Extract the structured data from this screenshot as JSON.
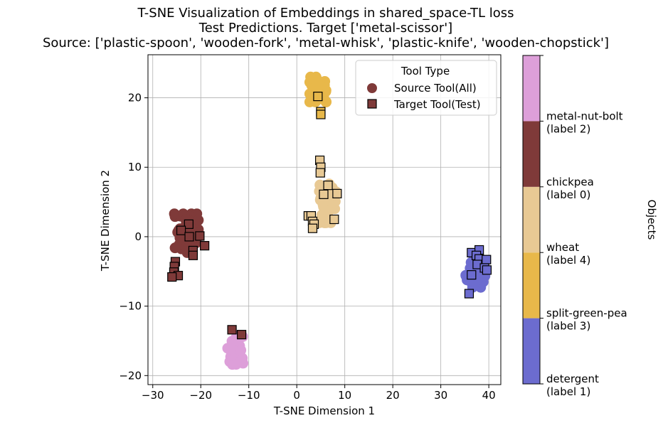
{
  "chart_data": {
    "type": "scatter",
    "title_lines": [
      "T-SNE Visualization of Embeddings in shared_space-TL loss",
      "Test Predictions. Target ['metal-scissor']",
      "Source: ['plastic-spoon', 'wooden-fork', 'metal-whisk', 'plastic-knife', 'wooden-chopstick']"
    ],
    "xlabel": "T-SNE Dimension 1",
    "ylabel": "T-SNE Dimension 2",
    "xlim": [
      -31,
      42.5
    ],
    "ylim": [
      -21.3,
      26.2
    ],
    "xticks": [
      -30,
      -20,
      -10,
      0,
      10,
      20,
      30,
      40
    ],
    "yticks": [
      -20,
      -10,
      0,
      10,
      20
    ],
    "grid": true,
    "legend": {
      "title": "Tool Type",
      "placement": "top-right",
      "entries": [
        "Source Tool(All)",
        "Target Tool(Test)"
      ]
    },
    "colorbar": {
      "title": "Objects",
      "categories": [
        {
          "name": "detergent",
          "label": "(label 1)",
          "color": "#6c6ccf"
        },
        {
          "name": "split-green-pea",
          "label": "(label 3)",
          "color": "#e8b84a"
        },
        {
          "name": "wheat",
          "label": "(label 4)",
          "color": "#e8c994"
        },
        {
          "name": "chickpea",
          "label": "(label 0)",
          "color": "#7f3a39"
        },
        {
          "name": "metal-nut-bolt",
          "label": "(label 2)",
          "color": "#dd9fd9"
        }
      ]
    },
    "series": [
      {
        "name": "Source Tool(All)",
        "marker": "circle",
        "clusters": [
          {
            "category": "chickpea",
            "center": [
              -23,
              0.5
            ],
            "spread": [
              2.5,
              2.8
            ],
            "count": 90
          },
          {
            "category": "metal-nut-bolt",
            "center": [
              -12.8,
              -16.5
            ],
            "spread": [
              1.6,
              2.3
            ],
            "count": 70
          },
          {
            "category": "split-green-pea",
            "center": [
              4.5,
              21.2
            ],
            "spread": [
              1.8,
              1.8
            ],
            "count": 60
          },
          {
            "category": "wheat",
            "center": [
              6.5,
              4.8
            ],
            "spread": [
              1.8,
              2.8
            ],
            "count": 60
          },
          {
            "category": "detergent",
            "center": [
              37.2,
              -5.5
            ],
            "spread": [
              2.0,
              1.8
            ],
            "count": 60
          }
        ]
      },
      {
        "name": "Target Tool(Test)",
        "marker": "square",
        "points": [
          {
            "x": 4.4,
            "y": 20.2,
            "category": "split-green-pea"
          },
          {
            "x": 5.0,
            "y": 18.0,
            "category": "split-green-pea"
          },
          {
            "x": 5.0,
            "y": 17.6,
            "category": "split-green-pea"
          },
          {
            "x": 4.8,
            "y": 11.0,
            "category": "wheat"
          },
          {
            "x": 5.0,
            "y": 10.0,
            "category": "wheat"
          },
          {
            "x": 4.9,
            "y": 9.2,
            "category": "wheat"
          },
          {
            "x": 6.5,
            "y": 7.4,
            "category": "wheat"
          },
          {
            "x": 5.6,
            "y": 6.1,
            "category": "wheat"
          },
          {
            "x": 8.4,
            "y": 6.2,
            "category": "wheat"
          },
          {
            "x": 2.4,
            "y": 3.0,
            "category": "wheat"
          },
          {
            "x": 3.0,
            "y": 3.0,
            "category": "wheat"
          },
          {
            "x": 3.3,
            "y": 2.2,
            "category": "wheat"
          },
          {
            "x": 3.6,
            "y": 1.8,
            "category": "wheat"
          },
          {
            "x": 3.3,
            "y": 1.2,
            "category": "wheat"
          },
          {
            "x": 7.8,
            "y": 2.5,
            "category": "wheat"
          },
          {
            "x": -22.5,
            "y": 1.8,
            "category": "chickpea"
          },
          {
            "x": -24.1,
            "y": 0.9,
            "category": "chickpea"
          },
          {
            "x": -20.2,
            "y": 0.1,
            "category": "chickpea"
          },
          {
            "x": -22.4,
            "y": 0.0,
            "category": "chickpea"
          },
          {
            "x": -19.2,
            "y": -1.3,
            "category": "chickpea"
          },
          {
            "x": -21.6,
            "y": -2.0,
            "category": "chickpea"
          },
          {
            "x": -21.6,
            "y": -2.7,
            "category": "chickpea"
          },
          {
            "x": -25.3,
            "y": -3.6,
            "category": "chickpea"
          },
          {
            "x": -25.5,
            "y": -4.3,
            "category": "chickpea"
          },
          {
            "x": -25.6,
            "y": -5.1,
            "category": "chickpea"
          },
          {
            "x": -24.7,
            "y": -5.6,
            "category": "chickpea"
          },
          {
            "x": -26.0,
            "y": -5.8,
            "category": "chickpea"
          },
          {
            "x": -13.5,
            "y": -13.4,
            "category": "chickpea"
          },
          {
            "x": -11.5,
            "y": -14.1,
            "category": "chickpea"
          },
          {
            "x": 36.4,
            "y": -2.3,
            "category": "detergent"
          },
          {
            "x": 38.0,
            "y": -1.9,
            "category": "detergent"
          },
          {
            "x": 37.4,
            "y": -2.7,
            "category": "detergent"
          },
          {
            "x": 38.0,
            "y": -3.2,
            "category": "detergent"
          },
          {
            "x": 39.5,
            "y": -3.3,
            "category": "detergent"
          },
          {
            "x": 37.6,
            "y": -4.0,
            "category": "detergent"
          },
          {
            "x": 39.1,
            "y": -4.5,
            "category": "detergent"
          },
          {
            "x": 39.6,
            "y": -4.8,
            "category": "detergent"
          },
          {
            "x": 36.4,
            "y": -5.5,
            "category": "detergent"
          },
          {
            "x": 35.9,
            "y": -8.2,
            "category": "detergent"
          }
        ]
      }
    ]
  }
}
